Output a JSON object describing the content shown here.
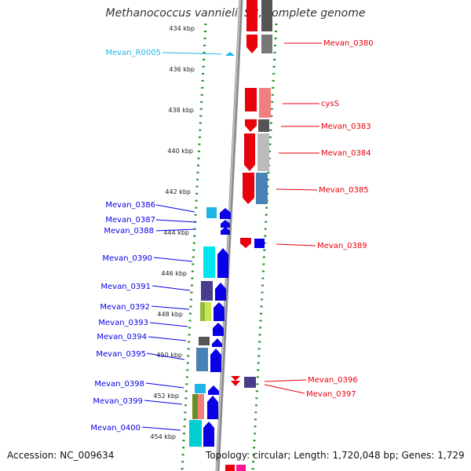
{
  "title": "Methanococcus vannielii SB, complete genome",
  "accession": "Accession: NC_009634",
  "topology": "Topology: circular; Length: 1,720,048 bp; Genes: 1,729",
  "ticks": [
    "434 kbp",
    "436 kbp",
    "438 kbp",
    "440 kbp",
    "442 kbp",
    "444 kbp",
    "446 kbp",
    "448 kbp",
    "450 kbp",
    "452 kbp",
    "454 kbp"
  ],
  "forward_genes": [
    "Mevan_0380",
    "cysS",
    "Mevan_0383",
    "Mevan_0384",
    "Mevan_0385",
    "Mevan_0389",
    "Mevan_0396",
    "Mevan_0397"
  ],
  "reverse_genes": [
    "Mevan_0386",
    "Mevan_0387",
    "Mevan_0388",
    "Mevan_0390",
    "Mevan_0391",
    "Mevan_0392",
    "Mevan_0393",
    "Mevan_0394",
    "Mevan_0395",
    "Mevan_0398",
    "Mevan_0399",
    "Mevan_0400"
  ],
  "rna_genes": [
    "Mevan_R0005"
  ],
  "colors": {
    "forward": "#e8000b",
    "reverse": "#0a00e6",
    "rna": "#1fb4e6",
    "backbone": "#999999",
    "ruler": "#1e8c1e"
  }
}
